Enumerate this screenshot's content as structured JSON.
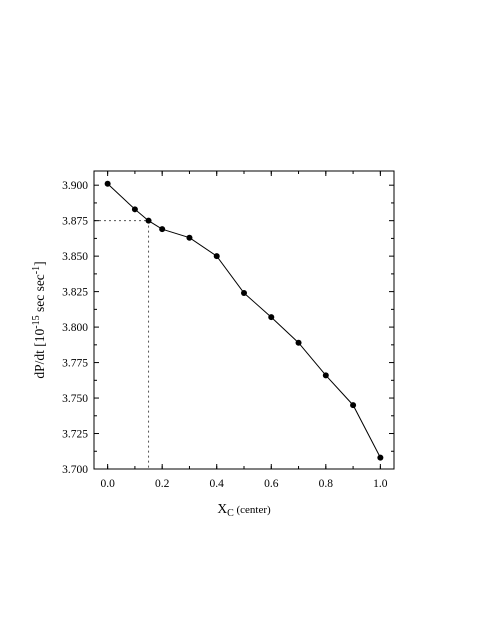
{
  "chart_data": {
    "type": "line",
    "title": "",
    "xlabel": {
      "main": "X",
      "sub": "C",
      "suffix": " (center)"
    },
    "ylabel": {
      "prefix": "dP/dt  [10",
      "exp1": "-15",
      "middle": " sec sec",
      "exp2": "-1",
      "suffix": "]"
    },
    "xlim": [
      -0.05,
      1.05
    ],
    "ylim": [
      3.7,
      3.91
    ],
    "x_ticks": [
      0.0,
      0.2,
      0.4,
      0.6,
      0.8,
      1.0
    ],
    "x_tick_labels": [
      "0.0",
      "0.2",
      "0.4",
      "0.6",
      "0.8",
      "1.0"
    ],
    "y_ticks": [
      3.7,
      3.725,
      3.75,
      3.775,
      3.8,
      3.825,
      3.85,
      3.875,
      3.9
    ],
    "y_tick_labels": [
      "3.700",
      "3.725",
      "3.750",
      "3.775",
      "3.800",
      "3.825",
      "3.850",
      "3.875",
      "3.900"
    ],
    "grid": false,
    "series": [
      {
        "x": [
          0.0,
          0.1,
          0.15,
          0.2,
          0.3,
          0.4,
          0.5,
          0.6,
          0.7,
          0.8,
          0.9,
          1.0
        ],
        "y": [
          3.901,
          3.883,
          3.875,
          3.869,
          3.863,
          3.85,
          3.824,
          3.807,
          3.789,
          3.766,
          3.745,
          3.708
        ]
      }
    ],
    "reference_point": {
      "x": 0.15,
      "y": 3.875
    }
  }
}
